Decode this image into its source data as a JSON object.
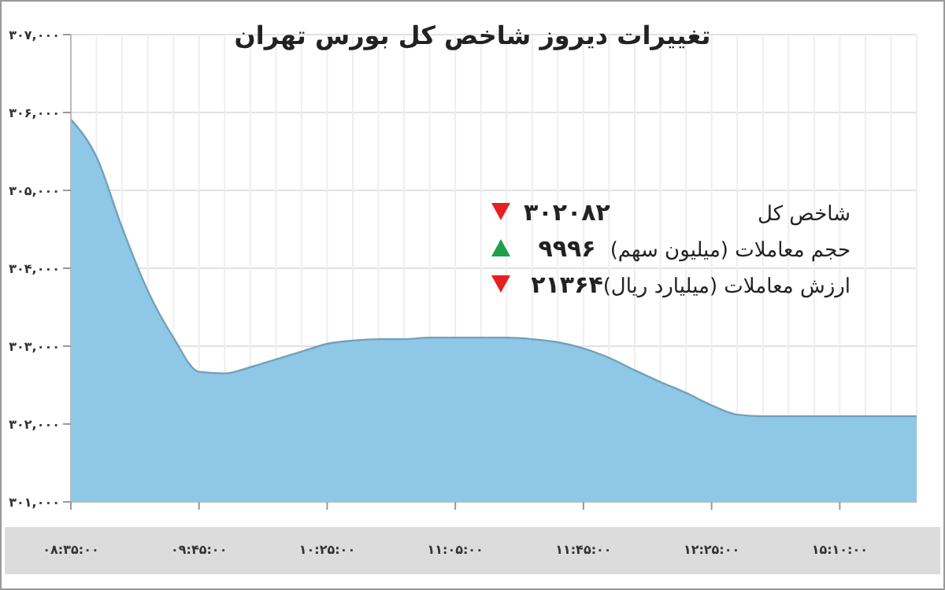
{
  "chart_data": {
    "type": "area",
    "title": "تغییرات دیروز شاخص کل بورس تهران",
    "categories": [
      "۰۸:۳۵:۰۰",
      null,
      null,
      null,
      null,
      "۰۹:۴۵:۰۰",
      null,
      null,
      null,
      null,
      "۱۰:۲۵:۰۰",
      null,
      null,
      null,
      null,
      "۱۱:۰۵:۰۰",
      null,
      null,
      null,
      null,
      "۱۱:۴۵:۰۰",
      null,
      null,
      null,
      null,
      "۱۲:۲۵:۰۰",
      null,
      null,
      null,
      null,
      "۱۵:۱۰:۰۰",
      null,
      null,
      null
    ],
    "series": [
      {
        "color": "#8ec8e6",
        "values": [
          305910,
          305430,
          304520,
          303710,
          303110,
          302670,
          302650,
          302730,
          302830,
          302930,
          303030,
          303070,
          303090,
          303090,
          303110,
          303110,
          303110,
          303110,
          303090,
          303050,
          302970,
          302850,
          302690,
          302540,
          302400,
          302240,
          302120,
          302100,
          302100,
          302100,
          302100,
          302100,
          302100,
          302100
        ]
      }
    ],
    "ylim": [
      301000,
      307000
    ],
    "yticks": [
      {
        "value": 301000,
        "label": "۳۰۱,۰۰۰"
      },
      {
        "value": 302000,
        "label": "۳۰۲,۰۰۰"
      },
      {
        "value": 303000,
        "label": "۳۰۳,۰۰۰"
      },
      {
        "value": 304000,
        "label": "۳۰۴,۰۰۰"
      },
      {
        "value": 305000,
        "label": "۳۰۵,۰۰۰"
      },
      {
        "value": 306000,
        "label": "۳۰۶,۰۰۰"
      },
      {
        "value": 307000,
        "label": "۳۰۷,۰۰۰"
      }
    ],
    "grid": true,
    "annotations": [
      "شاخص کل",
      "۳۰۲۰۸۲",
      "حجم معاملات (میلیون سهم)",
      "۹۹۹۶",
      "ارزش معاملات (میلیارد ریال)",
      "۲۱۳۶۴"
    ]
  }
}
